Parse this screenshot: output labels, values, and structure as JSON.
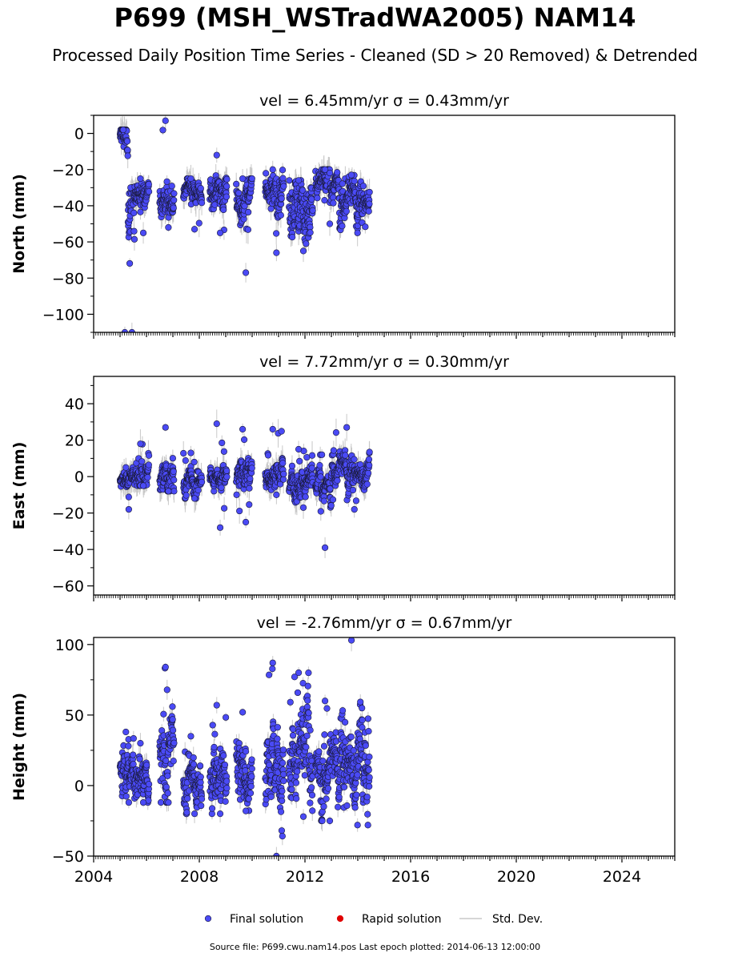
{
  "title": "P699 (MSH_WSTradWA2005) NAM14",
  "subtitle": "Processed Daily Position Time Series - Cleaned (SD > 20 Removed) & Detrended",
  "footer": "Source file: P699.cwu.nam14.pos  Last epoch plotted: 2014-06-13 12:00:00",
  "colors": {
    "final": "#4a4af5",
    "final_edge": "#1a1a3a",
    "rapid": "#e00000",
    "stddev": "#c8c8c8"
  },
  "chart_data": [
    {
      "type": "scatter",
      "title": "vel = 6.45mm/yr   σ = 0.43mm/yr",
      "ylabel": "North (mm)",
      "xlim": [
        2004,
        2026
      ],
      "ylim": [
        -110,
        10
      ],
      "yticks": [
        -100,
        -80,
        -60,
        -40,
        -20,
        0
      ],
      "ytick_labels": [
        "−100",
        "−80",
        "−60",
        "−40",
        "−20",
        "0"
      ],
      "segments": [
        {
          "x": [
            2005.0,
            2005.3
          ],
          "base": -5,
          "spread": 6,
          "min": -110,
          "max": 2
        },
        {
          "x": [
            2005.3,
            2005.55
          ],
          "base": -45,
          "spread": 14,
          "min": -110,
          "max": -30
        },
        {
          "x": [
            2005.55,
            2006.1
          ],
          "base": -34,
          "spread": 4,
          "min": -55,
          "max": -25
        },
        {
          "x": [
            2006.5,
            2007.05
          ],
          "base": -33,
          "spread": 6,
          "min": -52,
          "max": 7
        },
        {
          "x": [
            2007.4,
            2008.1
          ],
          "base": -33,
          "spread": 4,
          "min": -53,
          "max": -25
        },
        {
          "x": [
            2008.4,
            2009.05
          ],
          "base": -32,
          "spread": 5,
          "min": -55,
          "max": -12
        },
        {
          "x": [
            2009.4,
            2010.0
          ],
          "base": -32,
          "spread": 6,
          "min": -77,
          "max": -25
        },
        {
          "x": [
            2010.5,
            2011.2
          ],
          "base": -32,
          "spread": 6,
          "min": -66,
          "max": -20
        },
        {
          "x": [
            2011.4,
            2012.3
          ],
          "base": -40,
          "spread": 9,
          "min": -65,
          "max": -26
        },
        {
          "x": [
            2012.4,
            2013.3
          ],
          "base": -28,
          "spread": 5,
          "min": -50,
          "max": -20
        },
        {
          "x": [
            2013.3,
            2014.45
          ],
          "base": -38,
          "spread": 6,
          "min": -55,
          "max": -23
        }
      ]
    },
    {
      "type": "scatter",
      "title": "vel = 7.72mm/yr   σ = 0.30mm/yr",
      "ylabel": "East (mm)",
      "xlim": [
        2004,
        2026
      ],
      "ylim": [
        -65,
        55
      ],
      "yticks": [
        -60,
        -40,
        -20,
        0,
        20,
        40
      ],
      "ytick_labels": [
        "−60",
        "−40",
        "−20",
        "0",
        "20",
        "40"
      ],
      "segments": [
        {
          "x": [
            2005.0,
            2005.55
          ],
          "base": -1,
          "spread": 3,
          "min": -18,
          "max": 5
        },
        {
          "x": [
            2005.55,
            2006.1
          ],
          "base": 3,
          "spread": 5,
          "min": -5,
          "max": 18
        },
        {
          "x": [
            2006.5,
            2007.05
          ],
          "base": 0,
          "spread": 5,
          "min": -8,
          "max": 27
        },
        {
          "x": [
            2007.4,
            2008.1
          ],
          "base": -4,
          "spread": 4,
          "min": -12,
          "max": 13
        },
        {
          "x": [
            2008.4,
            2009.05
          ],
          "base": 1,
          "spread": 3,
          "min": -28,
          "max": 29
        },
        {
          "x": [
            2009.4,
            2010.0
          ],
          "base": 2,
          "spread": 5,
          "min": -25,
          "max": 26
        },
        {
          "x": [
            2010.5,
            2011.2
          ],
          "base": 2,
          "spread": 4,
          "min": -10,
          "max": 26
        },
        {
          "x": [
            2011.4,
            2012.3
          ],
          "base": -3,
          "spread": 5,
          "min": -17,
          "max": 15
        },
        {
          "x": [
            2012.4,
            2013.0
          ],
          "base": -5,
          "spread": 4,
          "min": -39,
          "max": 12
        },
        {
          "x": [
            2013.0,
            2014.45
          ],
          "base": 2,
          "spread": 5,
          "min": -18,
          "max": 27
        }
      ]
    },
    {
      "type": "scatter",
      "title": "vel = -2.76mm/yr   σ = 0.67mm/yr",
      "ylabel": "Height (mm)",
      "xlim": [
        2004,
        2026
      ],
      "ylim": [
        -50,
        105
      ],
      "yticks": [
        -50,
        0,
        50,
        100
      ],
      "ytick_labels": [
        "−50",
        "0",
        "50",
        "100"
      ],
      "xticks": [
        2004,
        2008,
        2012,
        2016,
        2020,
        2024
      ],
      "segments": [
        {
          "x": [
            2005.0,
            2005.55
          ],
          "base": 10,
          "spread": 9,
          "min": -12,
          "max": 38
        },
        {
          "x": [
            2005.55,
            2006.1
          ],
          "base": 5,
          "spread": 8,
          "min": -12,
          "max": 30
        },
        {
          "x": [
            2006.5,
            2007.05
          ],
          "base": 20,
          "spread": 15,
          "min": -12,
          "max": 84
        },
        {
          "x": [
            2007.4,
            2008.1
          ],
          "base": 5,
          "spread": 10,
          "min": -20,
          "max": 35
        },
        {
          "x": [
            2008.4,
            2009.05
          ],
          "base": 8,
          "spread": 11,
          "min": -20,
          "max": 57
        },
        {
          "x": [
            2009.4,
            2010.0
          ],
          "base": 10,
          "spread": 12,
          "min": -18,
          "max": 52
        },
        {
          "x": [
            2010.5,
            2011.2
          ],
          "base": 15,
          "spread": 15,
          "min": -50,
          "max": 87
        },
        {
          "x": [
            2011.4,
            2012.3
          ],
          "base": 20,
          "spread": 18,
          "min": -22,
          "max": 80
        },
        {
          "x": [
            2012.4,
            2013.3
          ],
          "base": 8,
          "spread": 12,
          "min": -25,
          "max": 60
        },
        {
          "x": [
            2013.3,
            2014.45
          ],
          "base": 18,
          "spread": 18,
          "min": -28,
          "max": 103
        }
      ]
    }
  ],
  "legend": {
    "placement": "bottom-center",
    "items": [
      {
        "label": "Final solution",
        "marker": "dot",
        "color": "#4a4af5"
      },
      {
        "label": "Rapid solution",
        "marker": "dot",
        "color": "#e00000"
      },
      {
        "label": "Std. Dev.",
        "marker": "line",
        "color": "#c8c8c8"
      }
    ]
  }
}
